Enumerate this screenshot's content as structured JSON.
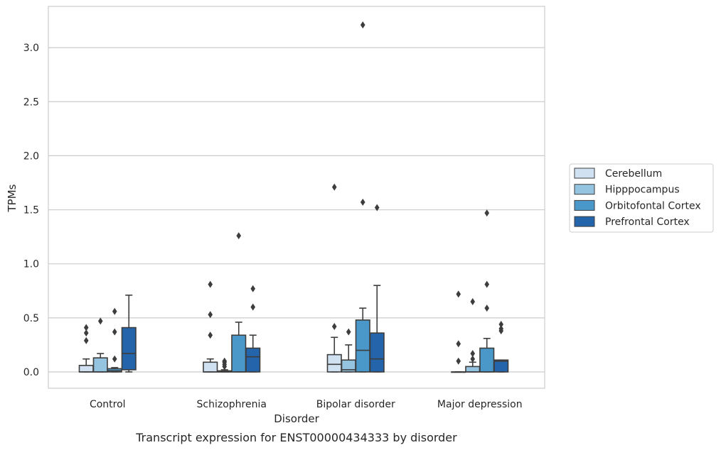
{
  "chart_data": {
    "type": "box",
    "caption": "Transcript expression for ENST00000434333 by disorder",
    "xlabel": "Disorder",
    "ylabel": "TPMs",
    "ylim": [
      -0.16,
      3.38
    ],
    "yticks": [
      "0.0",
      "0.5",
      "1.0",
      "1.5",
      "2.0",
      "2.5",
      "3.0"
    ],
    "grid": "horizontal",
    "legend_position": "right",
    "categories": [
      "Control",
      "Schizophrenia",
      "Bipolar disorder",
      "Major depression"
    ],
    "series": [
      {
        "name": "Cerebellum",
        "color": "#d0e1f2",
        "boxes": [
          {
            "whisker_low": 0.0,
            "q1": 0.0,
            "median": 0.0,
            "q3": 0.06,
            "whisker_high": 0.12,
            "outliers": [
              0.29,
              0.36,
              0.41
            ]
          },
          {
            "whisker_low": 0.0,
            "q1": 0.0,
            "median": 0.0,
            "q3": 0.09,
            "whisker_high": 0.12,
            "outliers": [
              0.34,
              0.53,
              0.81
            ]
          },
          {
            "whisker_low": 0.0,
            "q1": 0.0,
            "median": 0.07,
            "q3": 0.16,
            "whisker_high": 0.32,
            "outliers": [
              0.42,
              1.71
            ]
          },
          {
            "whisker_low": 0.0,
            "q1": 0.0,
            "median": 0.0,
            "q3": 0.0,
            "whisker_high": 0.0,
            "outliers": [
              0.1,
              0.26,
              0.72
            ]
          }
        ]
      },
      {
        "name": "Hipppocampus",
        "color": "#94c4df",
        "boxes": [
          {
            "whisker_low": 0.0,
            "q1": 0.0,
            "median": 0.0,
            "q3": 0.13,
            "whisker_high": 0.17,
            "outliers": [
              0.47
            ]
          },
          {
            "whisker_low": 0.0,
            "q1": 0.0,
            "median": 0.0,
            "q3": 0.01,
            "whisker_high": 0.02,
            "outliers": [
              0.05,
              0.07,
              0.09,
              0.1
            ]
          },
          {
            "whisker_low": 0.0,
            "q1": 0.0,
            "median": 0.02,
            "q3": 0.11,
            "whisker_high": 0.25,
            "outliers": [
              0.37
            ]
          },
          {
            "whisker_low": 0.0,
            "q1": 0.0,
            "median": 0.0,
            "q3": 0.05,
            "whisker_high": 0.09,
            "outliers": [
              0.12,
              0.17,
              0.65
            ]
          }
        ]
      },
      {
        "name": "Orbitofontal Cortex",
        "color": "#4a98c9",
        "boxes": [
          {
            "whisker_low": 0.0,
            "q1": 0.0,
            "median": 0.01,
            "q3": 0.03,
            "whisker_high": 0.04,
            "outliers": [
              0.12,
              0.37,
              0.56
            ]
          },
          {
            "whisker_low": 0.0,
            "q1": 0.0,
            "median": 0.0,
            "q3": 0.34,
            "whisker_high": 0.46,
            "outliers": [
              1.26
            ]
          },
          {
            "whisker_low": 0.0,
            "q1": 0.0,
            "median": 0.2,
            "q3": 0.48,
            "whisker_high": 0.59,
            "outliers": [
              1.57,
              3.21
            ]
          },
          {
            "whisker_low": 0.0,
            "q1": 0.0,
            "median": 0.0,
            "q3": 0.22,
            "whisker_high": 0.31,
            "outliers": [
              0.59,
              0.81,
              1.47
            ]
          }
        ]
      },
      {
        "name": "Prefrontal Cortex",
        "color": "#2464ab",
        "boxes": [
          {
            "whisker_low": 0.0,
            "q1": 0.02,
            "median": 0.17,
            "q3": 0.41,
            "whisker_high": 0.71,
            "outliers": []
          },
          {
            "whisker_low": 0.0,
            "q1": 0.0,
            "median": 0.14,
            "q3": 0.22,
            "whisker_high": 0.34,
            "outliers": [
              0.6,
              0.77
            ]
          },
          {
            "whisker_low": 0.0,
            "q1": 0.0,
            "median": 0.12,
            "q3": 0.36,
            "whisker_high": 0.8,
            "outliers": [
              1.52
            ]
          },
          {
            "whisker_low": 0.0,
            "q1": 0.0,
            "median": 0.1,
            "q3": 0.11,
            "whisker_high": 0.11,
            "outliers": [
              0.38,
              0.4,
              0.44
            ]
          }
        ]
      }
    ],
    "colors": {
      "grid": "#cccccc",
      "frame": "#cccccc",
      "edge": "#3d3d3d",
      "text": "#262626"
    }
  }
}
